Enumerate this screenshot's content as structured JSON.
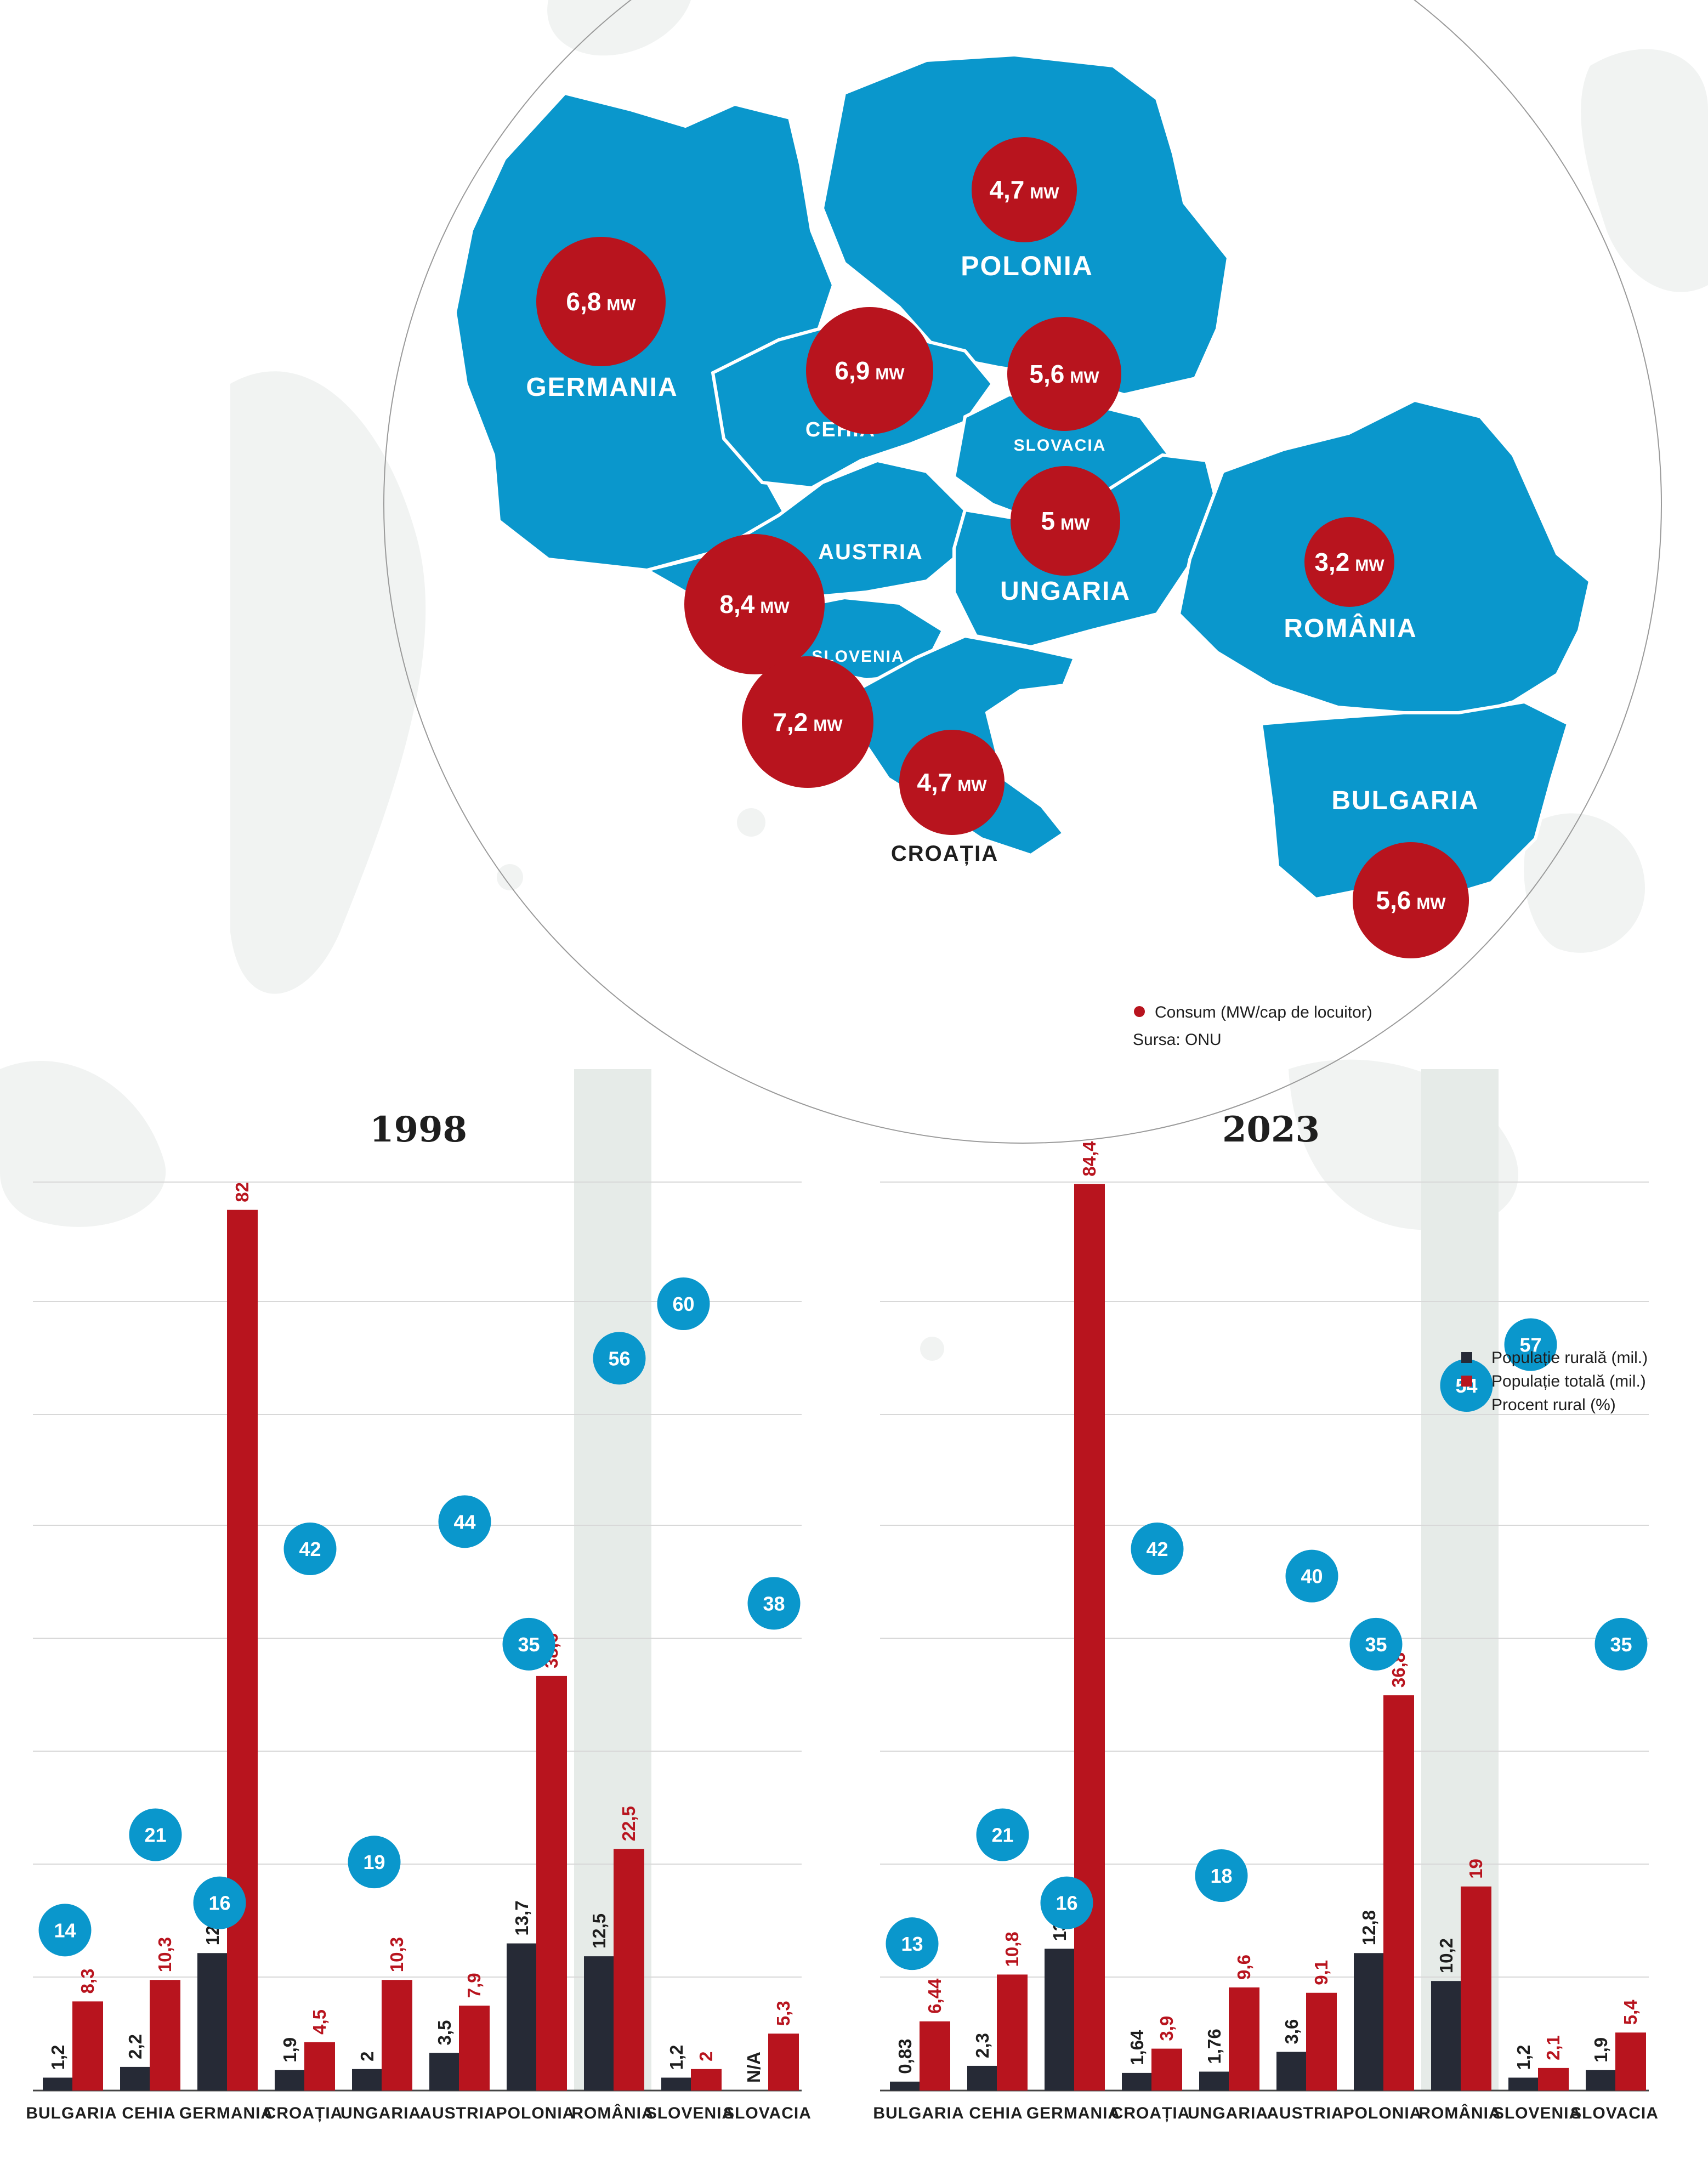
{
  "colors": {
    "map_fill": "#0a97cc",
    "consumption_circle": "#b8141e",
    "rural_bar": "#262a36",
    "total_bar": "#b8141e",
    "rural_percent_circle": "#0a97cc",
    "highlight_band": "#e6ebe8",
    "grid": "#d8d8d8"
  },
  "map": {
    "unit": "MW",
    "countries": [
      {
        "name": "GERMANIA",
        "value": "6,8"
      },
      {
        "name": "POLONIA",
        "value": "4,7"
      },
      {
        "name": "CEHIA",
        "value": "6,9"
      },
      {
        "name": "SLOVACIA",
        "value": "5,6"
      },
      {
        "name": "AUSTRIA",
        "value": "8,4"
      },
      {
        "name": "UNGARIA",
        "value": "5"
      },
      {
        "name": "SLOVENIA",
        "value": "7,2"
      },
      {
        "name": "CROAȚIA",
        "value": "4,7"
      },
      {
        "name": "ROMÂNIA",
        "value": "3,2"
      },
      {
        "name": "BULGARIA",
        "value": "5,6"
      }
    ],
    "legend": "Consum (MW/cap de locuitor)",
    "source": "Sursa: ONU"
  },
  "legend": {
    "rural": "Populație rurală (mil.)",
    "total": "Populație totală (mil.)",
    "percent": "Procent rural (%)"
  },
  "chart_data": [
    {
      "type": "bar",
      "title": "1998",
      "categories": [
        "BULGARIA",
        "CEHIA",
        "GERMANIA",
        "CROAȚIA",
        "UNGARIA",
        "AUSTRIA",
        "POLONIA",
        "ROMÂNIA",
        "SLOVENIA",
        "SLOVACIA"
      ],
      "highlight": "ROMÂNIA",
      "series": [
        {
          "name": "Populație rurală (mil.)",
          "values": [
            1.2,
            2.2,
            12.8,
            1.9,
            2,
            3.5,
            13.7,
            12.5,
            1.2,
            null
          ],
          "labels": [
            "1,2",
            "2,2",
            "12,8",
            "1,9",
            "2",
            "3,5",
            "13,7",
            "12,5",
            "1,2",
            "N/A"
          ]
        },
        {
          "name": "Populație totală (mil.)",
          "values": [
            8.3,
            10.3,
            82,
            4.5,
            10.3,
            7.9,
            38.6,
            22.5,
            2,
            5.3
          ],
          "labels": [
            "8,3",
            "10,3",
            "82",
            "4,5",
            "10,3",
            "7,9",
            "38,6",
            "22,5",
            "2",
            "5,3"
          ]
        },
        {
          "name": "Procent rural (%)",
          "values": [
            14,
            21,
            16,
            42,
            19,
            44,
            35,
            56,
            60,
            38
          ],
          "labels": [
            "14",
            "21",
            "16",
            "42",
            "19",
            "44",
            "35",
            "56",
            "60",
            "38"
          ]
        }
      ]
    },
    {
      "type": "bar",
      "title": "2023",
      "categories": [
        "BULGARIA",
        "CEHIA",
        "GERMANIA",
        "CROAȚIA",
        "UNGARIA",
        "AUSTRIA",
        "POLONIA",
        "ROMÂNIA",
        "SLOVENIA",
        "SLOVACIA"
      ],
      "highlight": "ROMÂNIA",
      "series": [
        {
          "name": "Populație rurală (mil.)",
          "values": [
            0.83,
            2.3,
            13.2,
            1.64,
            1.76,
            3.6,
            12.8,
            10.2,
            1.2,
            1.9
          ],
          "labels": [
            "0,83",
            "2,3",
            "13,2",
            "1,64",
            "1,76",
            "3,6",
            "12,8",
            "10,2",
            "1,2",
            "1,9"
          ]
        },
        {
          "name": "Populație totală (mil.)",
          "values": [
            6.44,
            10.8,
            84.4,
            3.9,
            9.6,
            9.1,
            36.8,
            19,
            2.1,
            5.4
          ],
          "labels": [
            "6,44",
            "10,8",
            "84,4",
            "3,9",
            "9,6",
            "9,1",
            "36,8",
            "19",
            "2,1",
            "5,4"
          ]
        },
        {
          "name": "Procent rural (%)",
          "values": [
            13,
            21,
            16,
            42,
            18,
            40,
            35,
            54,
            57,
            35
          ],
          "labels": [
            "13",
            "21",
            "16",
            "42",
            "18",
            "40",
            "35",
            "54",
            "57",
            "35"
          ]
        }
      ]
    }
  ]
}
